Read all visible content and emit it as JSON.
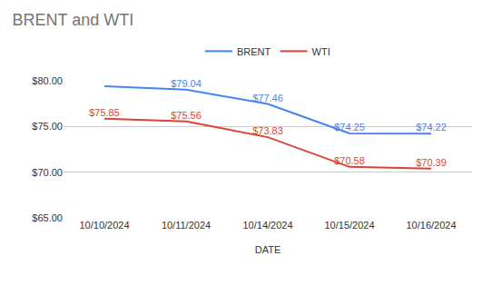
{
  "chart_data": {
    "type": "line",
    "title": "BRENT and WTI",
    "x_label": "DATE",
    "categories": [
      "10/10/2024",
      "10/11/2024",
      "10/14/2024",
      "10/15/2024",
      "10/16/2024"
    ],
    "series": [
      {
        "name": "BRENT",
        "color": "#4285f4",
        "values": [
          79.4,
          79.04,
          77.46,
          74.25,
          74.22
        ],
        "value_labels": [
          null,
          "$79.04",
          "$77.46",
          "$74.25",
          "$74.22"
        ]
      },
      {
        "name": "WTI",
        "color": "#db4437",
        "values": [
          75.85,
          75.56,
          73.83,
          70.58,
          70.39
        ],
        "value_labels": [
          "$75.85",
          "$75.56",
          "$73.83",
          "$70.58",
          "$70.39"
        ]
      }
    ],
    "ylim": [
      65,
      80
    ],
    "yticks": [
      {
        "value": 65,
        "label": "$65.00"
      },
      {
        "value": 70,
        "label": "$70.00"
      },
      {
        "value": 75,
        "label": "$75.00"
      },
      {
        "value": 80,
        "label": "$80.00"
      }
    ],
    "grid": true,
    "legend": "top",
    "data_labels": true
  }
}
